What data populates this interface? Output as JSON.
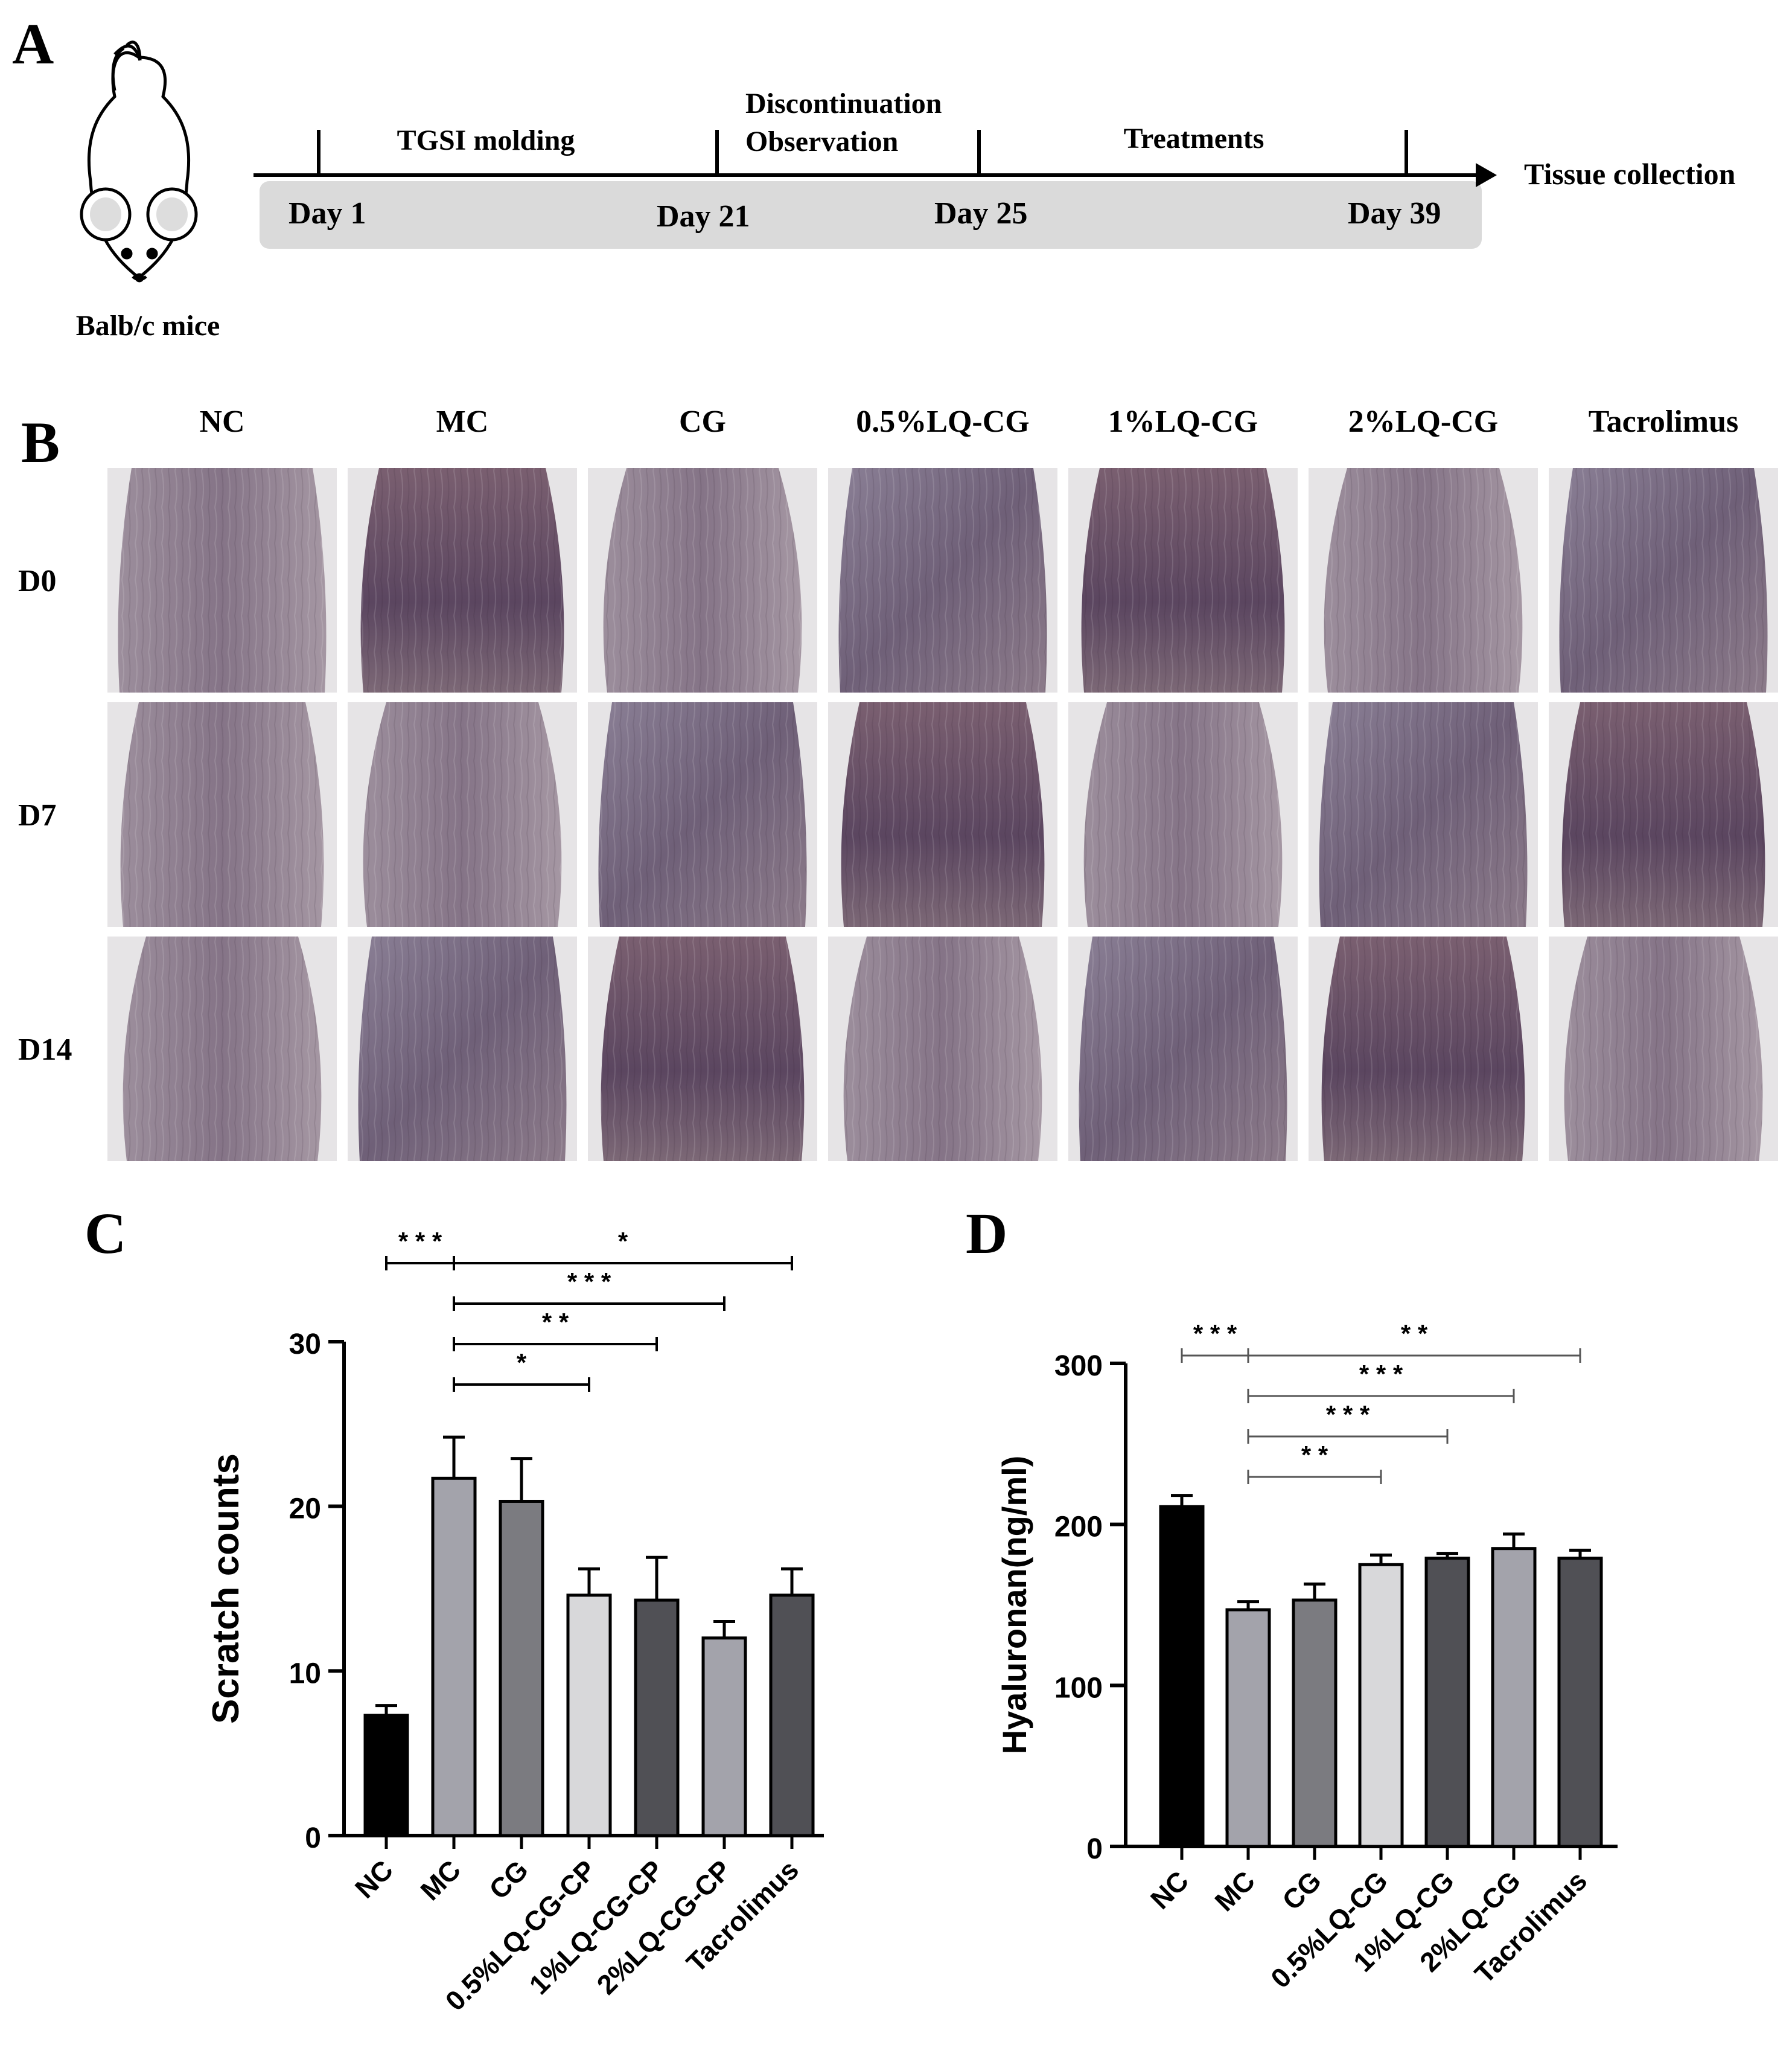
{
  "panel_labels": {
    "a": "A",
    "b": "B",
    "c": "C",
    "d": "D"
  },
  "timeline": {
    "mouse_label": "Balb/c mice",
    "phases": [
      "TGSI molding",
      "Discontinuation",
      "Observation",
      "Treatments"
    ],
    "days": [
      "Day 1",
      "Day 21",
      "Day 25",
      "Day 39"
    ],
    "endpoint": "Tissue collection"
  },
  "photo_grid": {
    "groups": [
      "NC",
      "MC",
      "CG",
      "0.5%LQ-CG",
      "1%LQ-CG",
      "2%LQ-CG",
      "Tacrolimus"
    ],
    "timepoints": [
      "D0",
      "D7",
      "D14"
    ]
  },
  "chart_data": [
    {
      "type": "bar",
      "panel": "C",
      "categories": [
        "NC",
        "MC",
        "CG",
        "0.5%LQ-CG-CP",
        "1%LQ-CG-CP",
        "2%LQ-CG-CP",
        "Tacrolimus"
      ],
      "values": [
        7.3,
        21.7,
        20.3,
        14.6,
        14.3,
        12.0,
        14.6
      ],
      "errors": [
        0.6,
        2.5,
        2.6,
        1.6,
        2.6,
        1.0,
        1.6
      ],
      "colors": [
        "#000000",
        "#a3a3ab",
        "#7b7b80",
        "#d8d8da",
        "#505055",
        "#a3a3ab",
        "#505055"
      ],
      "ylabel": "Scratch counts",
      "ylim": [
        0,
        30
      ],
      "yticks": [
        0,
        10,
        20,
        30
      ],
      "significance": [
        {
          "from": 0,
          "to": 1,
          "label": "* * *"
        },
        {
          "from": 1,
          "to": 6,
          "label": "*"
        },
        {
          "from": 1,
          "to": 5,
          "label": "* * *"
        },
        {
          "from": 1,
          "to": 4,
          "label": "* *"
        },
        {
          "from": 1,
          "to": 3,
          "label": "*"
        }
      ]
    },
    {
      "type": "bar",
      "panel": "D",
      "categories": [
        "NC",
        "MC",
        "CG",
        "0.5%LQ-CG",
        "1%LQ-CG",
        "2%LQ-CG",
        "Tacrolimus"
      ],
      "values": [
        211,
        147,
        153,
        175,
        179,
        185,
        179
      ],
      "errors": [
        7,
        5,
        10,
        6,
        3,
        9,
        5
      ],
      "colors": [
        "#000000",
        "#a3a3ab",
        "#7b7b80",
        "#d8d8da",
        "#505055",
        "#a3a3ab",
        "#505055"
      ],
      "ylabel": "Hyaluronan(ng/ml)",
      "ylim": [
        0,
        300
      ],
      "yticks": [
        0,
        100,
        200,
        300
      ],
      "significance": [
        {
          "from": 0,
          "to": 1,
          "label": "* * *"
        },
        {
          "from": 1,
          "to": 6,
          "label": "* *"
        },
        {
          "from": 1,
          "to": 5,
          "label": "* * *"
        },
        {
          "from": 1,
          "to": 4,
          "label": "* * *"
        },
        {
          "from": 1,
          "to": 3,
          "label": "* *"
        }
      ]
    }
  ]
}
